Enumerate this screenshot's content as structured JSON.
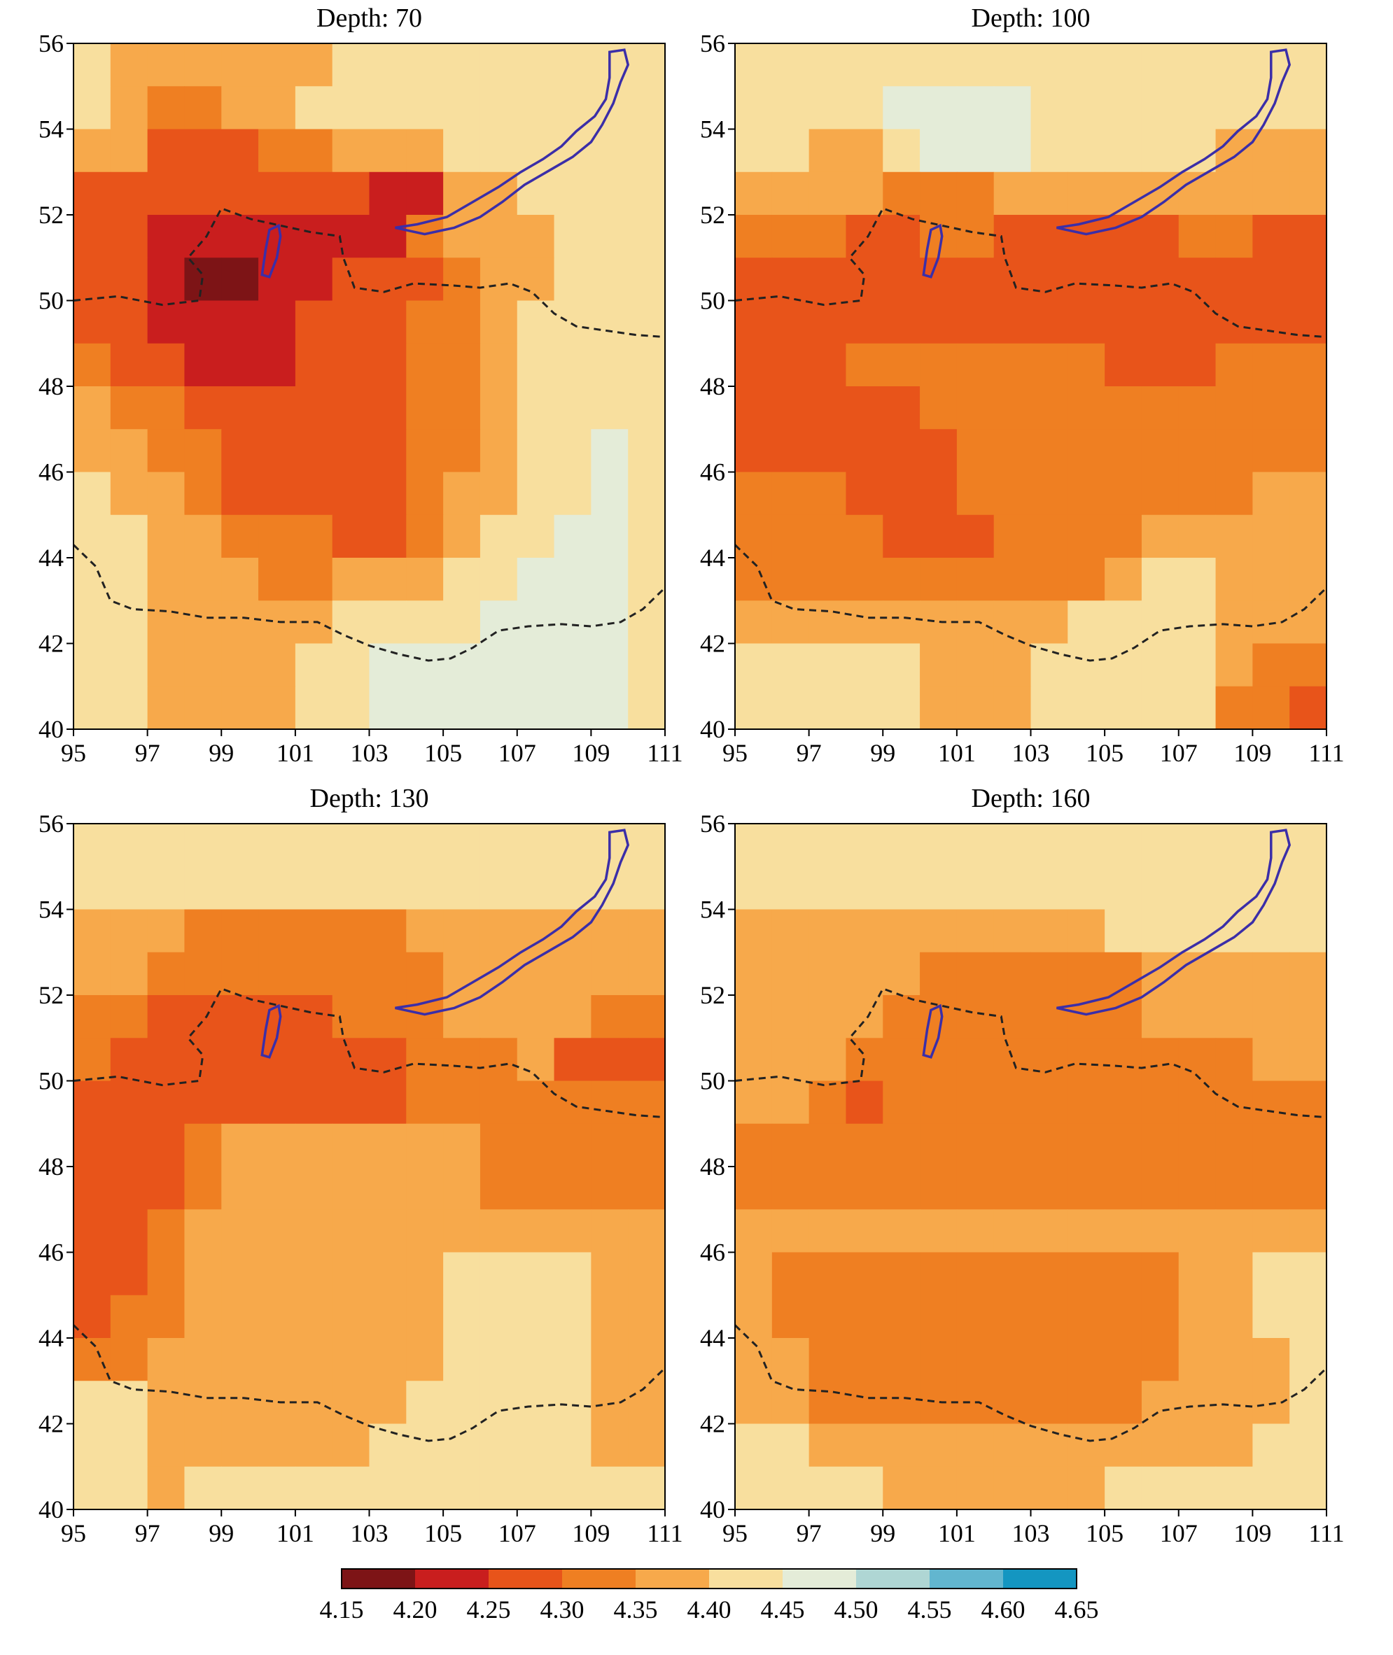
{
  "panels": [
    {
      "title": "Depth: 70",
      "grid": [
        "5444444555555555",
        "5433445555555555",
        "4422233444555555",
        "2222222211445555",
        "2211111113444555",
        "2210011222344555",
        "2211112223345555",
        "3221112223345555",
        "4332222223345555",
        "4433222223345565",
        "5443222223445565",
        "5544333223455665",
        "5544433444556665",
        "5544444555566665",
        "5544445566666665",
        "5544445566666665"
      ]
    },
    {
      "title": "Depth: 100",
      "grid": [
        "5555555555555555",
        "5555666655555555",
        "5544566655555444",
        "4444333444444444",
        "3332233222223322",
        "2222222222222222",
        "2222222222222222",
        "2223333333222333",
        "2222233333333333",
        "2222223333333333",
        "3332223333333344",
        "3333222333344444",
        "3333333333455444",
        "4444444445555444",
        "5555544455555433",
        "5555544455555332"
      ]
    },
    {
      "title": "Depth: 130",
      "grid": [
        "5555555555555555",
        "5555555555555555",
        "4443333334444444",
        "4433333333444444",
        "3322222333444433",
        "3222222223334222",
        "2222222223333333",
        "2223444444433333",
        "2223444444433333",
        "2234444444444444",
        "2234444444555544",
        "2334444444555544",
        "3344444444555544",
        "5544444445555544",
        "5544444455555544",
        "5545555555555555"
      ]
    },
    {
      "title": "Depth: 160",
      "grid": [
        "5555555555555555",
        "5555555555555555",
        "4444444444555555",
        "4444433333344444",
        "4444333333344444",
        "4443333333333344",
        "4432333333333333",
        "3333333333333333",
        "3333333333333333",
        "4444444444444444",
        "4333333333334455",
        "4333333333334455",
        "4433333333334445",
        "4433333333344445",
        "5544444444444455",
        "5555444444555555"
      ]
    }
  ],
  "x_ticks": [
    "95",
    "97",
    "99",
    "101",
    "103",
    "105",
    "107",
    "109",
    "111"
  ],
  "y_ticks": [
    "56",
    "54",
    "52",
    "50",
    "48",
    "46",
    "44",
    "42",
    "40"
  ],
  "colors": [
    "#7d1416",
    "#c91e1e",
    "#e8541a",
    "#ef7f22",
    "#f7a94b",
    "#f8df9e",
    "#e4ecd8",
    "#afd6d4",
    "#62b6cf",
    "#1496c1"
  ],
  "colorbar_labels": [
    "4.15",
    "4.20",
    "4.25",
    "4.30",
    "4.35",
    "4.40",
    "4.45",
    "4.50",
    "4.55",
    "4.60",
    "4.65"
  ],
  "lake_color": "#3b2ea8",
  "border_color": "#222222"
}
